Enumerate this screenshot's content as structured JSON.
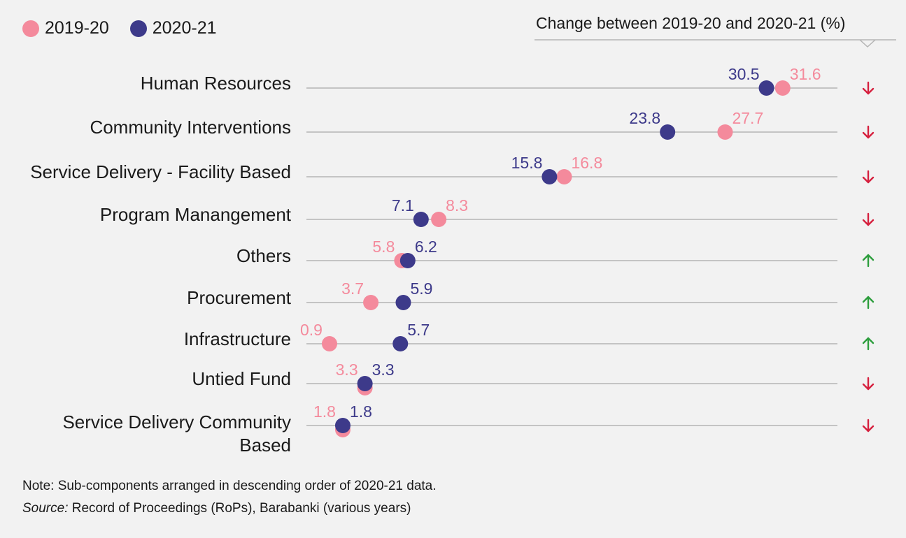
{
  "legend": [
    {
      "label": "2019-20",
      "color": "#f48a9c"
    },
    {
      "label": "2020-21",
      "color": "#3d3a8a"
    }
  ],
  "change_header": "Change between 2019-20 and 2020-21 (%)",
  "colors": {
    "down": "#d6213f",
    "up": "#2e9e3e",
    "grid": "#b4b4b4"
  },
  "note": "Note: Sub-components arranged in descending order of 2020-21 data.",
  "source_label": "Source:",
  "source_text": " Record of Proceedings (RoPs), Barabanki (various years)",
  "chart_data": {
    "type": "dot",
    "title": "",
    "xlabel": "",
    "ylabel": "",
    "xlim": [
      0,
      32
    ],
    "series": [
      {
        "name": "2019-20",
        "color": "#f48a9c",
        "values": [
          31.6,
          27.7,
          16.8,
          8.3,
          5.8,
          3.7,
          0.9,
          3.3,
          1.8
        ]
      },
      {
        "name": "2020-21",
        "color": "#3d3a8a",
        "values": [
          30.5,
          23.8,
          15.8,
          7.1,
          6.2,
          5.9,
          5.7,
          3.3,
          1.8
        ]
      }
    ],
    "categories": [
      {
        "lines": [
          "Human Resources"
        ],
        "change": "down"
      },
      {
        "lines": [
          "Community Interventions"
        ],
        "change": "down"
      },
      {
        "lines": [
          "Service Delivery - Facility Based"
        ],
        "change": "down"
      },
      {
        "lines": [
          "Program Manangement"
        ],
        "change": "down"
      },
      {
        "lines": [
          "Others"
        ],
        "change": "up"
      },
      {
        "lines": [
          "Procurement"
        ],
        "change": "up"
      },
      {
        "lines": [
          "Infrastructure"
        ],
        "change": "up"
      },
      {
        "lines": [
          "Untied Fund"
        ],
        "change": "down"
      },
      {
        "lines": [
          "Service Delivery Community",
          "Based"
        ],
        "change": "down"
      }
    ],
    "value_labels": [
      [
        "31.6",
        "30.5"
      ],
      [
        "27.7",
        "23.8"
      ],
      [
        "16.8",
        "15.8"
      ],
      [
        "8.3",
        "7.1"
      ],
      [
        "5.8",
        "6.2"
      ],
      [
        "3.7",
        "5.9"
      ],
      [
        "0.9",
        "5.7"
      ],
      [
        "3.3",
        "3.3"
      ],
      [
        "1.8",
        "1.8"
      ]
    ]
  }
}
